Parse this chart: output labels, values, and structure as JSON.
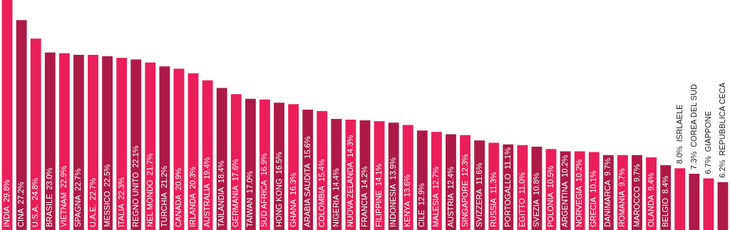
{
  "chart_data": {
    "type": "bar",
    "categories": [
      "INDIA",
      "CINA",
      "U.S.A.",
      "BRASILE",
      "VIETNAM",
      "SPAGNA",
      "U.A.E.",
      "MESSICO",
      "ITALIA",
      "REGNO UNITO",
      "NEL MONDO",
      "TURCHIA",
      "CANADA",
      "IRLANDA",
      "AUSTRALIA",
      "TAILANDIA",
      "GERMANIA",
      "TAIWAN",
      "SUD AFRICA",
      "HONG KONG",
      "GHANA",
      "ARABIA SAUDITA",
      "COLOMBIA",
      "NIGERIA",
      "NUOVA ZELANDA",
      "FRANCIA",
      "FILIPPINE",
      "INDONESIA",
      "KENYA",
      "CILE",
      "MALESIA",
      "AUSTRIA",
      "SINGAPORE",
      "SVIZZERA",
      "RUSSIA",
      "PORTOGALLO",
      "EGITTO",
      "SVEZIA",
      "POLONIA",
      "ARGENTINA",
      "NORVEGIA",
      "GRECIA",
      "DANIMARCA",
      "ROMANIA",
      "MAROCCO",
      "OLANDA",
      "BELGIO",
      "ISRLAELE",
      "COREA DEL SUD",
      "GIAPPONE",
      "REPUBBLICA CECA"
    ],
    "values": [
      29.8,
      27.2,
      24.8,
      23.0,
      22.9,
      22.7,
      22.7,
      22.5,
      22.3,
      22.1,
      21.7,
      21.2,
      20.9,
      20.3,
      19.4,
      18.4,
      17.6,
      17.0,
      16.9,
      16.5,
      16.3,
      15.6,
      15.4,
      14.4,
      14.3,
      14.2,
      14.1,
      13.9,
      13.6,
      12.9,
      12.7,
      12.4,
      12.3,
      11.6,
      11.3,
      11.1,
      11.0,
      10.8,
      10.5,
      10.2,
      10.2,
      10.1,
      9.7,
      9.7,
      9.7,
      9.4,
      8.4,
      8.0,
      7.3,
      6.7,
      6.2
    ],
    "value_labels": [
      "29.8%",
      "27.2%",
      "24.8%",
      "23.0%",
      "22.9%",
      "22.7%",
      "22.7%",
      "22.5%",
      "22.3%",
      "22.1%",
      "21.7%",
      "21.2%",
      "20.9%",
      "20.3%",
      "19.4%",
      "18.4%",
      "17.6%",
      "17.0%",
      "16.9%",
      "16.5%",
      "16.3%",
      "15.6%",
      "15.4%",
      "14.4%",
      "14.3%",
      "14.2%",
      "14.1%",
      "13.9%",
      "13.6%",
      "12.9%",
      "12.7%",
      "12.4%",
      "12.3%",
      "11.6%",
      "11.3%",
      "11.1%",
      "11.0%",
      "10.8%",
      "10.5%",
      "10.2%",
      "10.2%",
      "10.1%",
      "9.7%",
      "9.7%",
      "9.7%",
      "9.4%",
      "8.4%",
      "8.0%",
      "7.3%",
      "6.7%",
      "6.2%"
    ],
    "colors": [
      "#e91e5a",
      "#ad1a47",
      "#e91e5a",
      "#ad1a47",
      "#e91e5a",
      "#ad1a47",
      "#e91e5a",
      "#ad1a47",
      "#e91e5a",
      "#ad1a47",
      "#e91e5a",
      "#ad1a47",
      "#e91e5a",
      "#e91e5a",
      "#e91e5a",
      "#ad1a47",
      "#e91e5a",
      "#ad1a47",
      "#e91e5a",
      "#ad1a47",
      "#e91e5a",
      "#ad1a47",
      "#e91e5a",
      "#ad1a47",
      "#e91e5a",
      "#ad1a47",
      "#e91e5a",
      "#ad1a47",
      "#e91e5a",
      "#ad1a47",
      "#e91e5a",
      "#ad1a47",
      "#e91e5a",
      "#ad1a47",
      "#e91e5a",
      "#ad1a47",
      "#e91e5a",
      "#ad1a47",
      "#e91e5a",
      "#ad1a47",
      "#e91e5a",
      "#e91e5a",
      "#ad1a47",
      "#e91e5a",
      "#ad1a47",
      "#e91e5a",
      "#ad1a47",
      "#e91e5a",
      "#ad1a47",
      "#e91e5a",
      "#ad1a47"
    ],
    "ylim": [
      0,
      29.8
    ],
    "tick_labels": false,
    "grid": false,
    "legend": false
  }
}
